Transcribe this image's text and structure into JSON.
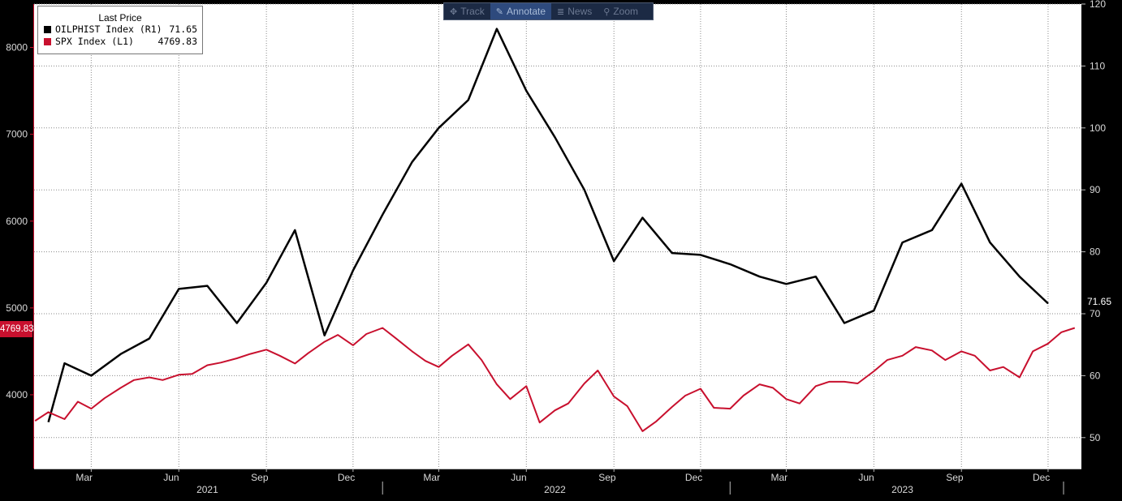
{
  "toolbar": {
    "items": [
      {
        "label": "Track",
        "icon": "crosshair-icon",
        "active": false
      },
      {
        "label": "Annotate",
        "icon": "pencil-icon",
        "active": true
      },
      {
        "label": "News",
        "icon": "news-list-icon",
        "active": false
      },
      {
        "label": "Zoom",
        "icon": "magnifier-icon",
        "active": false
      }
    ]
  },
  "legend": {
    "title": "Last Price",
    "rows": [
      {
        "name": "OILPHIST Index  (R1)",
        "value": "71.65",
        "color": "#000000"
      },
      {
        "name": "SPX Index  (L1)",
        "value": "4769.83",
        "color": "#c8102e"
      }
    ]
  },
  "badges": {
    "left_last": "4769.83",
    "right_last": "71.65"
  },
  "chart_data": {
    "type": "line",
    "x_range": [
      "2020-12-31",
      "2024-01-05"
    ],
    "left_axis": {
      "ticks": [
        "4000",
        "5000",
        "6000",
        "7000",
        "8000"
      ],
      "range": [
        3150,
        8500
      ]
    },
    "right_axis": {
      "ticks": [
        "50",
        "60",
        "70",
        "80",
        "90",
        "100",
        "110",
        "120"
      ],
      "range": [
        45,
        120
      ]
    },
    "x_months": [
      {
        "label": "Mar",
        "date": "2021-03-01"
      },
      {
        "label": "Jun",
        "date": "2021-06-01"
      },
      {
        "label": "Sep",
        "date": "2021-09-01"
      },
      {
        "label": "Dec",
        "date": "2021-12-01"
      },
      {
        "label": "Mar",
        "date": "2022-03-01"
      },
      {
        "label": "Jun",
        "date": "2022-06-01"
      },
      {
        "label": "Sep",
        "date": "2022-09-01"
      },
      {
        "label": "Dec",
        "date": "2022-12-01"
      },
      {
        "label": "Mar",
        "date": "2023-03-01"
      },
      {
        "label": "Jun",
        "date": "2023-06-01"
      },
      {
        "label": "Sep",
        "date": "2023-09-01"
      },
      {
        "label": "Dec",
        "date": "2023-12-01"
      }
    ],
    "x_years": [
      {
        "label": "2021",
        "date": "2021-07-01"
      },
      {
        "label": "2022",
        "date": "2022-07-01"
      },
      {
        "label": "2023",
        "date": "2023-07-01"
      }
    ],
    "year_separators": [
      "2022-01-01",
      "2023-01-01",
      "2024-01-01"
    ],
    "grid": true,
    "series": [
      {
        "name": "OILPHIST Index  (R1)",
        "axis": "right",
        "color": "#000000",
        "points": [
          [
            "2021-01-15",
            52.5
          ],
          [
            "2021-02-01",
            62.0
          ],
          [
            "2021-03-01",
            60.0
          ],
          [
            "2021-04-01",
            63.5
          ],
          [
            "2021-05-01",
            66.0
          ],
          [
            "2021-06-01",
            74.0
          ],
          [
            "2021-07-01",
            74.5
          ],
          [
            "2021-08-01",
            68.5
          ],
          [
            "2021-09-01",
            75.0
          ],
          [
            "2021-10-01",
            83.5
          ],
          [
            "2021-11-01",
            66.5
          ],
          [
            "2021-12-01",
            77.0
          ],
          [
            "2022-01-01",
            86.0
          ],
          [
            "2022-02-01",
            94.5
          ],
          [
            "2022-03-01",
            100.0
          ],
          [
            "2022-04-01",
            104.5
          ],
          [
            "2022-05-01",
            116.0
          ],
          [
            "2022-06-01",
            106.0
          ],
          [
            "2022-07-01",
            98.5
          ],
          [
            "2022-08-01",
            90.0
          ],
          [
            "2022-09-01",
            78.5
          ],
          [
            "2022-10-01",
            85.5
          ],
          [
            "2022-11-01",
            79.8
          ],
          [
            "2022-12-01",
            79.5
          ],
          [
            "2023-01-01",
            78.0
          ],
          [
            "2023-02-01",
            76.0
          ],
          [
            "2023-03-01",
            74.8
          ],
          [
            "2023-04-01",
            76.0
          ],
          [
            "2023-05-01",
            68.5
          ],
          [
            "2023-06-01",
            70.5
          ],
          [
            "2023-07-01",
            81.5
          ],
          [
            "2023-08-01",
            83.5
          ],
          [
            "2023-09-01",
            91.0
          ],
          [
            "2023-10-01",
            81.5
          ],
          [
            "2023-11-01",
            76.0
          ],
          [
            "2023-12-01",
            71.65
          ]
        ]
      },
      {
        "name": "SPX Index  (L1)",
        "axis": "left",
        "color": "#c8102e",
        "points": [
          [
            "2021-01-01",
            3700
          ],
          [
            "2021-01-15",
            3800
          ],
          [
            "2021-02-01",
            3720
          ],
          [
            "2021-02-15",
            3920
          ],
          [
            "2021-03-01",
            3840
          ],
          [
            "2021-03-15",
            3960
          ],
          [
            "2021-04-01",
            4080
          ],
          [
            "2021-04-15",
            4170
          ],
          [
            "2021-05-01",
            4200
          ],
          [
            "2021-05-15",
            4170
          ],
          [
            "2021-06-01",
            4230
          ],
          [
            "2021-06-15",
            4240
          ],
          [
            "2021-07-01",
            4340
          ],
          [
            "2021-07-15",
            4370
          ],
          [
            "2021-08-01",
            4420
          ],
          [
            "2021-08-15",
            4470
          ],
          [
            "2021-09-01",
            4520
          ],
          [
            "2021-09-15",
            4450
          ],
          [
            "2021-10-01",
            4360
          ],
          [
            "2021-10-15",
            4480
          ],
          [
            "2021-11-01",
            4610
          ],
          [
            "2021-11-15",
            4690
          ],
          [
            "2021-12-01",
            4570
          ],
          [
            "2021-12-15",
            4700
          ],
          [
            "2022-01-01",
            4770
          ],
          [
            "2022-01-15",
            4650
          ],
          [
            "2022-02-01",
            4500
          ],
          [
            "2022-02-15",
            4390
          ],
          [
            "2022-03-01",
            4320
          ],
          [
            "2022-03-15",
            4450
          ],
          [
            "2022-04-01",
            4580
          ],
          [
            "2022-04-15",
            4400
          ],
          [
            "2022-05-01",
            4120
          ],
          [
            "2022-05-15",
            3950
          ],
          [
            "2022-06-01",
            4100
          ],
          [
            "2022-06-15",
            3680
          ],
          [
            "2022-07-01",
            3820
          ],
          [
            "2022-07-15",
            3900
          ],
          [
            "2022-08-01",
            4130
          ],
          [
            "2022-08-15",
            4280
          ],
          [
            "2022-09-01",
            3980
          ],
          [
            "2022-09-15",
            3870
          ],
          [
            "2022-10-01",
            3580
          ],
          [
            "2022-10-15",
            3690
          ],
          [
            "2022-11-01",
            3860
          ],
          [
            "2022-11-15",
            3990
          ],
          [
            "2022-12-01",
            4070
          ],
          [
            "2022-12-15",
            3850
          ],
          [
            "2023-01-01",
            3840
          ],
          [
            "2023-01-15",
            3990
          ],
          [
            "2023-02-01",
            4120
          ],
          [
            "2023-02-15",
            4080
          ],
          [
            "2023-03-01",
            3950
          ],
          [
            "2023-03-15",
            3900
          ],
          [
            "2023-04-01",
            4100
          ],
          [
            "2023-04-15",
            4150
          ],
          [
            "2023-05-01",
            4150
          ],
          [
            "2023-05-15",
            4130
          ],
          [
            "2023-06-01",
            4270
          ],
          [
            "2023-06-15",
            4400
          ],
          [
            "2023-07-01",
            4450
          ],
          [
            "2023-07-15",
            4550
          ],
          [
            "2023-08-01",
            4510
          ],
          [
            "2023-08-15",
            4400
          ],
          [
            "2023-09-01",
            4500
          ],
          [
            "2023-09-15",
            4450
          ],
          [
            "2023-10-01",
            4280
          ],
          [
            "2023-10-15",
            4320
          ],
          [
            "2023-11-01",
            4200
          ],
          [
            "2023-11-15",
            4500
          ],
          [
            "2023-12-01",
            4590
          ],
          [
            "2023-12-15",
            4720
          ],
          [
            "2023-12-29",
            4769.83
          ]
        ]
      }
    ]
  }
}
